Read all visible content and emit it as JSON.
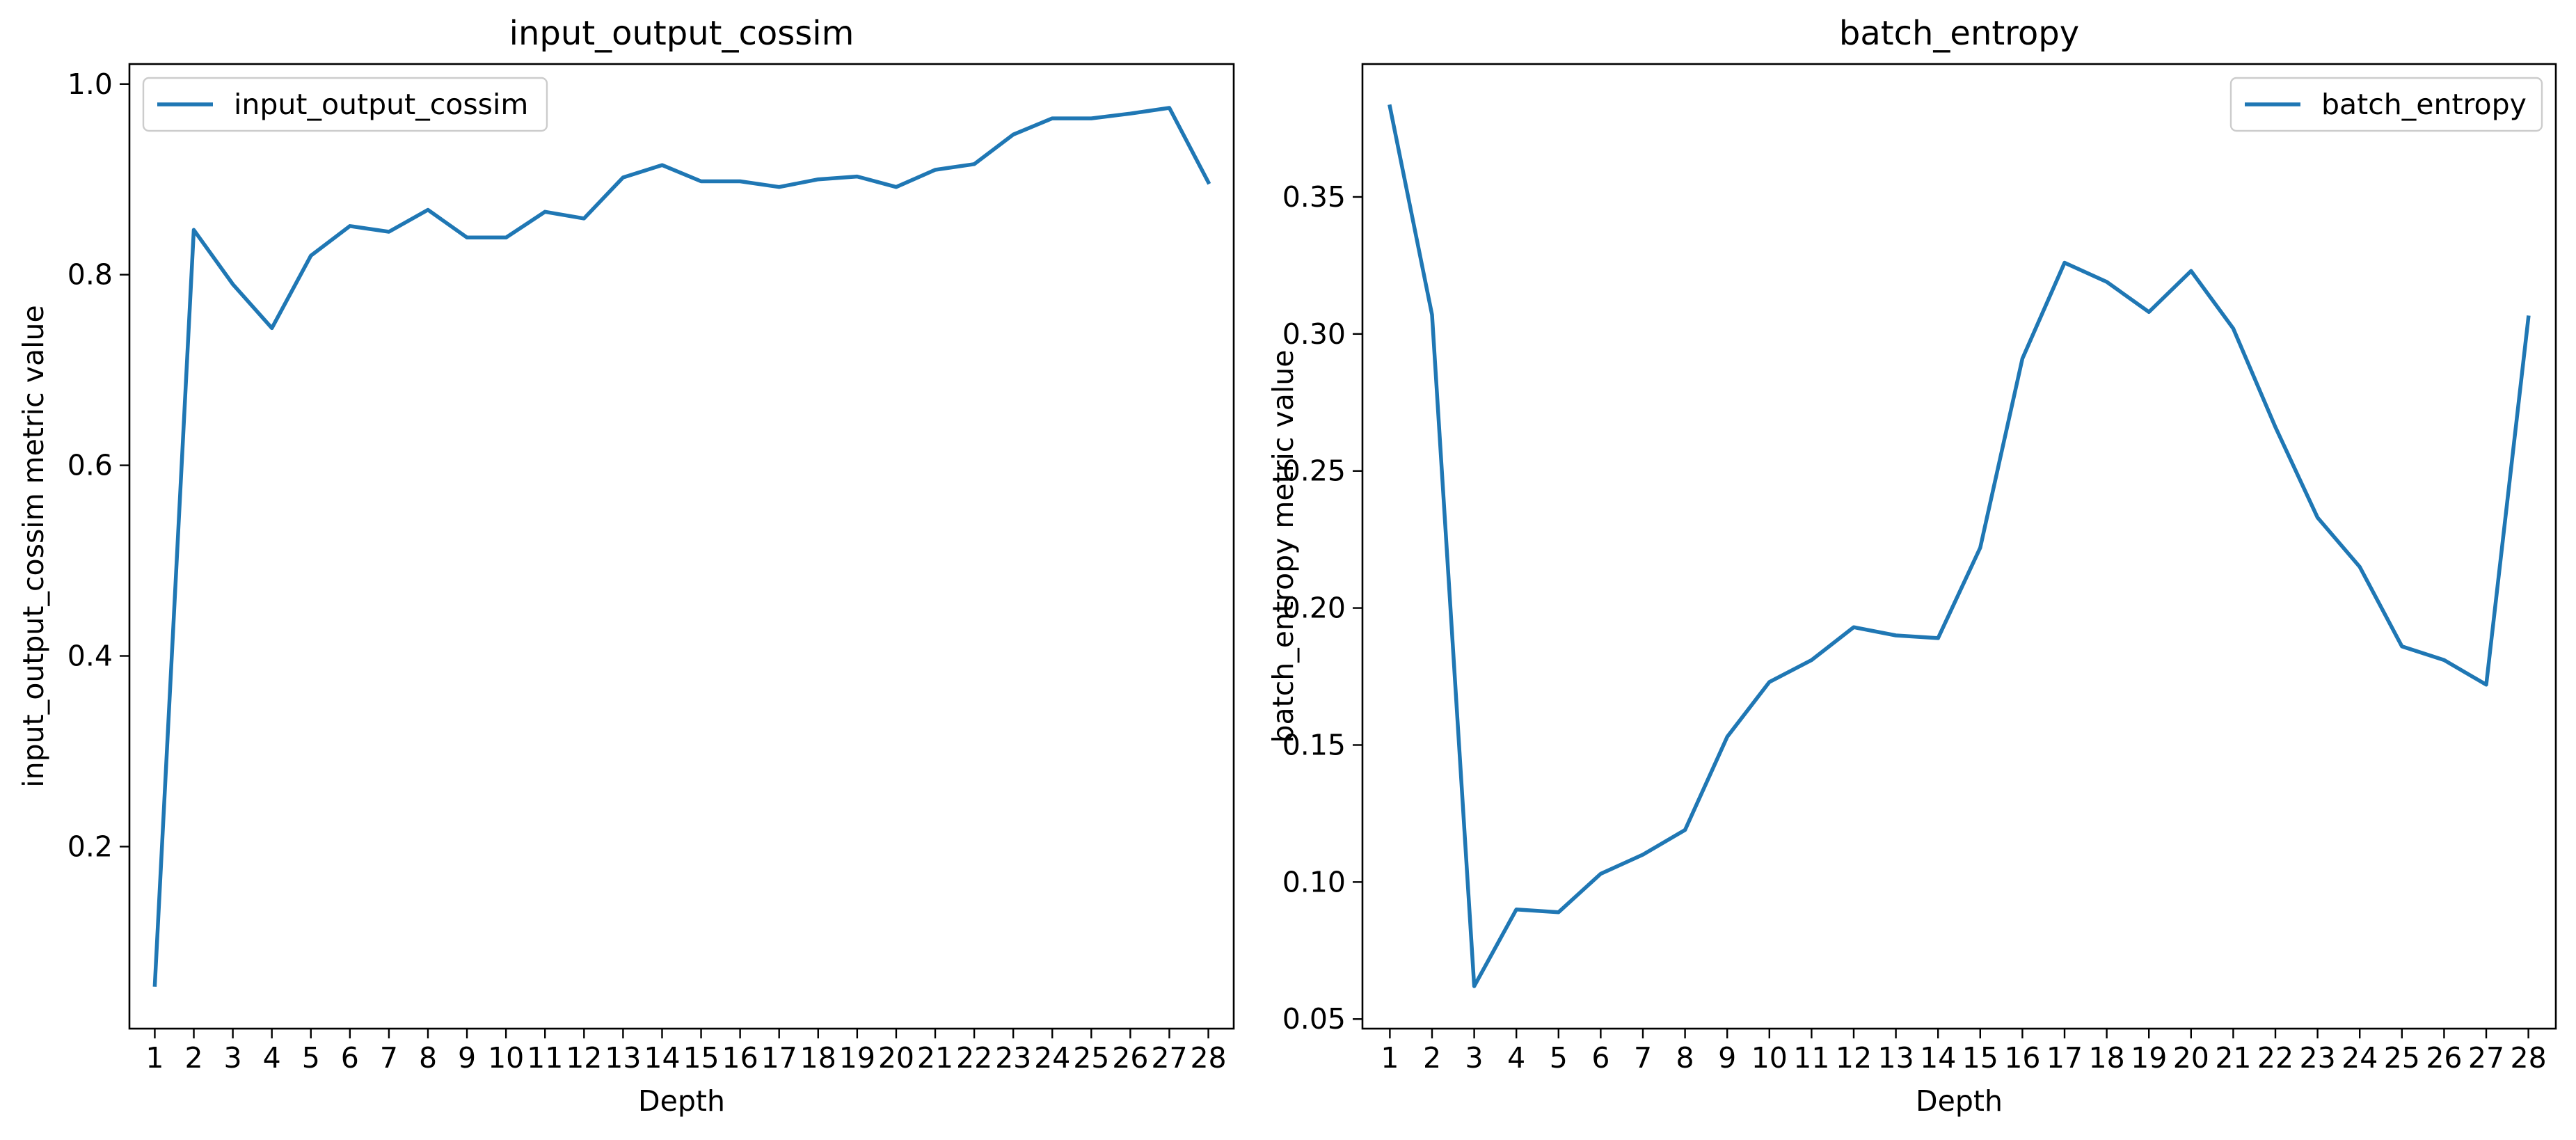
{
  "colors": {
    "series": "#1f77b4",
    "axis": "#000000",
    "legend_border": "#cccccc"
  },
  "chart_data": [
    {
      "type": "line",
      "title": "input_output_cossim",
      "xlabel": "Depth",
      "ylabel": "input_output_cossim metric value",
      "x": [
        1,
        2,
        3,
        4,
        5,
        6,
        7,
        8,
        9,
        10,
        11,
        12,
        13,
        14,
        15,
        16,
        17,
        18,
        19,
        20,
        21,
        22,
        23,
        24,
        25,
        26,
        27,
        28
      ],
      "xticks": [
        "1",
        "2",
        "3",
        "4",
        "5",
        "6",
        "7",
        "8",
        "9",
        "10",
        "11",
        "12",
        "13",
        "14",
        "15",
        "16",
        "17",
        "18",
        "19",
        "20",
        "21",
        "22",
        "23",
        "24",
        "25",
        "26",
        "27",
        "28"
      ],
      "series": [
        {
          "name": "input_output_cossim",
          "values": [
            0.055,
            0.847,
            0.79,
            0.744,
            0.82,
            0.851,
            0.845,
            0.868,
            0.839,
            0.839,
            0.866,
            0.859,
            0.902,
            0.915,
            0.898,
            0.898,
            0.892,
            0.9,
            0.903,
            0.892,
            0.91,
            0.916,
            0.947,
            0.964,
            0.964,
            0.969,
            0.975,
            0.897
          ]
        }
      ],
      "yticks": [
        0.2,
        0.4,
        0.6,
        0.8,
        1.0
      ],
      "ytick_labels": [
        "0.2",
        "0.4",
        "0.6",
        "0.8",
        "1.0"
      ],
      "ylim": [
        0.009,
        1.021
      ],
      "xlim": [
        0.35,
        28.65
      ],
      "legend": "upper-left",
      "grid": false
    },
    {
      "type": "line",
      "title": "batch_entropy",
      "xlabel": "Depth",
      "ylabel": "batch_entropy metric value",
      "x": [
        1,
        2,
        3,
        4,
        5,
        6,
        7,
        8,
        9,
        10,
        11,
        12,
        13,
        14,
        15,
        16,
        17,
        18,
        19,
        20,
        21,
        22,
        23,
        24,
        25,
        26,
        27,
        28
      ],
      "xticks": [
        "1",
        "2",
        "3",
        "4",
        "5",
        "6",
        "7",
        "8",
        "9",
        "10",
        "11",
        "12",
        "13",
        "14",
        "15",
        "16",
        "17",
        "18",
        "19",
        "20",
        "21",
        "22",
        "23",
        "24",
        "25",
        "26",
        "27",
        "28"
      ],
      "series": [
        {
          "name": "batch_entropy",
          "values": [
            0.383,
            0.307,
            0.062,
            0.09,
            0.089,
            0.103,
            0.11,
            0.119,
            0.153,
            0.173,
            0.181,
            0.193,
            0.19,
            0.189,
            0.222,
            0.291,
            0.326,
            0.319,
            0.308,
            0.323,
            0.302,
            0.266,
            0.233,
            0.215,
            0.186,
            0.181,
            0.172,
            0.306
          ]
        }
      ],
      "yticks": [
        0.05,
        0.1,
        0.15,
        0.2,
        0.25,
        0.3,
        0.35
      ],
      "ytick_labels": [
        "0.05",
        "0.10",
        "0.15",
        "0.20",
        "0.25",
        "0.30",
        "0.35"
      ],
      "ylim": [
        0.0465,
        0.3985
      ],
      "xlim": [
        0.35,
        28.65
      ],
      "legend": "upper-right",
      "grid": false
    }
  ]
}
